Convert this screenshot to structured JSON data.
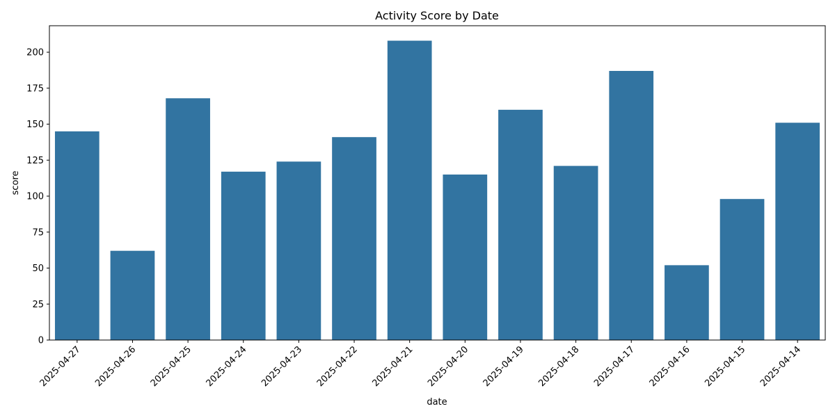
{
  "chart_data": {
    "type": "bar",
    "title": "Activity Score by Date",
    "xlabel": "date",
    "ylabel": "score",
    "categories": [
      "2025-04-27",
      "2025-04-26",
      "2025-04-25",
      "2025-04-24",
      "2025-04-23",
      "2025-04-22",
      "2025-04-21",
      "2025-04-20",
      "2025-04-19",
      "2025-04-18",
      "2025-04-17",
      "2025-04-16",
      "2025-04-15",
      "2025-04-14"
    ],
    "values": [
      145,
      62,
      168,
      117,
      124,
      141,
      208,
      115,
      160,
      121,
      187,
      52,
      98,
      151
    ],
    "ylim": [
      0,
      218.4
    ],
    "yticks": [
      0,
      25,
      50,
      75,
      100,
      125,
      150,
      175,
      200
    ],
    "grid": false,
    "bar_color": "#3274a1",
    "xtick_rotation_deg": 45
  }
}
